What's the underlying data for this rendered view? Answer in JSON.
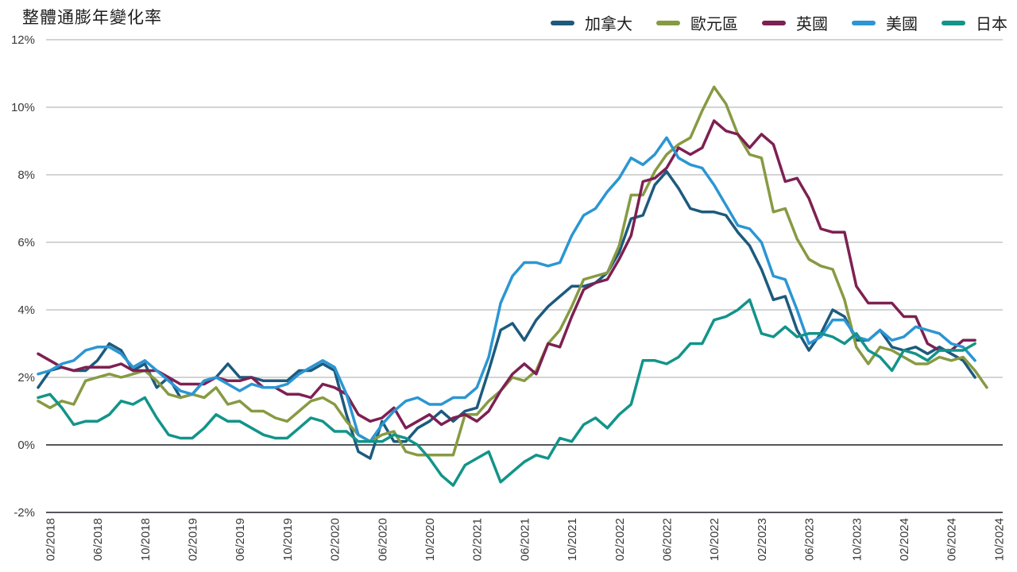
{
  "title": "整體通膨年變化率",
  "legend": [
    {
      "id": "canada",
      "label": "加拿大",
      "color": "#1d5a7e"
    },
    {
      "id": "eurozone",
      "label": "歐元區",
      "color": "#879a43"
    },
    {
      "id": "uk",
      "label": "英國",
      "color": "#7d2052"
    },
    {
      "id": "us",
      "label": "美國",
      "color": "#2b96d3"
    },
    {
      "id": "japan",
      "label": "日本",
      "color": "#12948a"
    }
  ],
  "chart_data": {
    "type": "line",
    "title": "整體通膨年變化率",
    "x_interval": "monthly",
    "x_start_month": "01/2018",
    "x_tick_labels": [
      "02/2018",
      "06/2018",
      "10/2018",
      "02/2019",
      "06/2019",
      "10/2019",
      "02/2020",
      "06/2020",
      "10/2020",
      "02/2021",
      "06/2021",
      "10/2021",
      "02/2022",
      "06/2022",
      "10/2022",
      "02/2023",
      "06/2023",
      "10/2023",
      "02/2024",
      "06/2024",
      "10/2024"
    ],
    "x_tick_first_index": 1,
    "x_tick_step_months": 4,
    "x_total_months": 82,
    "ylim": [
      -2,
      12
    ],
    "y_ticks": [
      -2,
      0,
      2,
      4,
      6,
      8,
      10,
      12
    ],
    "y_tick_suffix": "%",
    "grid": "horizontal",
    "legend_position": "top-right",
    "series": [
      {
        "id": "canada",
        "name": "加拿大",
        "color": "#1d5a7e",
        "values": [
          1.7,
          2.2,
          2.3,
          2.2,
          2.2,
          2.5,
          3.0,
          2.8,
          2.2,
          2.4,
          1.7,
          2.0,
          1.4,
          1.5,
          1.9,
          2.0,
          2.4,
          2.0,
          2.0,
          1.9,
          1.9,
          1.9,
          2.2,
          2.2,
          2.4,
          2.2,
          0.9,
          -0.2,
          -0.4,
          0.7,
          0.1,
          0.1,
          0.5,
          0.7,
          1.0,
          0.7,
          1.0,
          1.1,
          2.2,
          3.4,
          3.6,
          3.1,
          3.7,
          4.1,
          4.4,
          4.7,
          4.7,
          4.8,
          5.1,
          5.7,
          6.7,
          6.8,
          7.7,
          8.1,
          7.6,
          7.0,
          6.9,
          6.9,
          6.8,
          6.3,
          5.9,
          5.2,
          4.3,
          4.4,
          3.4,
          2.8,
          3.3,
          4.0,
          3.8,
          3.1,
          3.1,
          3.4,
          2.9,
          2.8,
          2.9,
          2.7,
          2.9,
          2.7,
          2.5,
          2.0
        ]
      },
      {
        "id": "eurozone",
        "name": "歐元區",
        "color": "#879a43",
        "values": [
          1.3,
          1.1,
          1.3,
          1.2,
          1.9,
          2.0,
          2.1,
          2.0,
          2.1,
          2.2,
          1.9,
          1.5,
          1.4,
          1.5,
          1.4,
          1.7,
          1.2,
          1.3,
          1.0,
          1.0,
          0.8,
          0.7,
          1.0,
          1.3,
          1.4,
          1.2,
          0.7,
          0.3,
          0.1,
          0.3,
          0.4,
          -0.2,
          -0.3,
          -0.3,
          -0.3,
          -0.3,
          0.9,
          0.9,
          1.3,
          1.6,
          2.0,
          1.9,
          2.2,
          3.0,
          3.4,
          4.1,
          4.9,
          5.0,
          5.1,
          5.9,
          7.4,
          7.4,
          8.1,
          8.6,
          8.9,
          9.1,
          9.9,
          10.6,
          10.1,
          9.2,
          8.6,
          8.5,
          6.9,
          7.0,
          6.1,
          5.5,
          5.3,
          5.2,
          4.3,
          2.9,
          2.4,
          2.9,
          2.8,
          2.6,
          2.4,
          2.4,
          2.6,
          2.5,
          2.6,
          2.2,
          1.7
        ]
      },
      {
        "id": "uk",
        "name": "英國",
        "color": "#7d2052",
        "values": [
          2.7,
          2.5,
          2.3,
          2.2,
          2.3,
          2.3,
          2.3,
          2.4,
          2.2,
          2.2,
          2.2,
          2.0,
          1.8,
          1.8,
          1.8,
          2.0,
          1.9,
          1.9,
          2.0,
          1.7,
          1.7,
          1.5,
          1.5,
          1.4,
          1.8,
          1.7,
          1.5,
          0.9,
          0.7,
          0.8,
          1.1,
          0.5,
          0.7,
          0.9,
          0.6,
          0.8,
          0.9,
          0.7,
          1.0,
          1.6,
          2.1,
          2.4,
          2.1,
          3.0,
          2.9,
          3.8,
          4.6,
          4.8,
          4.9,
          5.5,
          6.2,
          7.8,
          7.9,
          8.2,
          8.8,
          8.6,
          8.8,
          9.6,
          9.3,
          9.2,
          8.8,
          9.2,
          8.9,
          7.8,
          7.9,
          7.3,
          6.4,
          6.3,
          6.3,
          4.7,
          4.2,
          4.2,
          4.2,
          3.8,
          3.8,
          3.0,
          2.8,
          2.8,
          3.1,
          3.1
        ]
      },
      {
        "id": "us",
        "name": "美國",
        "color": "#2b96d3",
        "values": [
          2.1,
          2.2,
          2.4,
          2.5,
          2.8,
          2.9,
          2.9,
          2.7,
          2.3,
          2.5,
          2.2,
          1.9,
          1.6,
          1.5,
          1.9,
          2.0,
          1.8,
          1.6,
          1.8,
          1.7,
          1.7,
          1.8,
          2.1,
          2.3,
          2.5,
          2.3,
          1.5,
          0.3,
          0.1,
          0.6,
          1.0,
          1.3,
          1.4,
          1.2,
          1.2,
          1.4,
          1.4,
          1.7,
          2.6,
          4.2,
          5.0,
          5.4,
          5.4,
          5.3,
          5.4,
          6.2,
          6.8,
          7.0,
          7.5,
          7.9,
          8.5,
          8.3,
          8.6,
          9.1,
          8.5,
          8.3,
          8.2,
          7.7,
          7.1,
          6.5,
          6.4,
          6.0,
          5.0,
          4.9,
          4.0,
          3.0,
          3.2,
          3.7,
          3.7,
          3.2,
          3.1,
          3.4,
          3.1,
          3.2,
          3.5,
          3.4,
          3.3,
          3.0,
          2.9,
          2.5
        ]
      },
      {
        "id": "japan",
        "name": "日本",
        "color": "#12948a",
        "values": [
          1.4,
          1.5,
          1.1,
          0.6,
          0.7,
          0.7,
          0.9,
          1.3,
          1.2,
          1.4,
          0.8,
          0.3,
          0.2,
          0.2,
          0.5,
          0.9,
          0.7,
          0.7,
          0.5,
          0.3,
          0.2,
          0.2,
          0.5,
          0.8,
          0.7,
          0.4,
          0.4,
          0.1,
          0.1,
          0.1,
          0.3,
          0.2,
          0.0,
          -0.4,
          -0.9,
          -1.2,
          -0.6,
          -0.4,
          -0.2,
          -1.1,
          -0.8,
          -0.5,
          -0.3,
          -0.4,
          0.2,
          0.1,
          0.6,
          0.8,
          0.5,
          0.9,
          1.2,
          2.5,
          2.5,
          2.4,
          2.6,
          3.0,
          3.0,
          3.7,
          3.8,
          4.0,
          4.3,
          3.3,
          3.2,
          3.5,
          3.2,
          3.3,
          3.3,
          3.2,
          3.0,
          3.3,
          2.8,
          2.6,
          2.2,
          2.8,
          2.7,
          2.5,
          2.8,
          2.8,
          2.8,
          3.0
        ]
      }
    ]
  }
}
